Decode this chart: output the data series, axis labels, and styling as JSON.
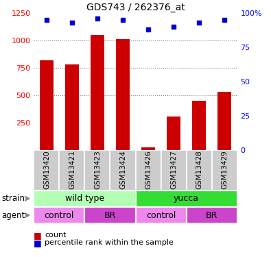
{
  "title": "GDS743 / 262376_at",
  "samples": [
    "GSM13420",
    "GSM13421",
    "GSM13423",
    "GSM13424",
    "GSM13426",
    "GSM13427",
    "GSM13428",
    "GSM13429"
  ],
  "counts": [
    820,
    780,
    1050,
    1010,
    30,
    310,
    450,
    530
  ],
  "percentile_ranks": [
    95,
    93,
    96,
    95,
    88,
    90,
    93,
    95
  ],
  "bar_color": "#cc0000",
  "dot_color": "#0000cc",
  "ylim_left": [
    0,
    1250
  ],
  "ylim_right": [
    0,
    100
  ],
  "yticks_left": [
    250,
    500,
    750,
    1000,
    1250
  ],
  "yticks_right": [
    0,
    25,
    50,
    75,
    100
  ],
  "ytick_labels_right": [
    "0",
    "25",
    "50",
    "75",
    "100%"
  ],
  "strain_groups": [
    {
      "label": "wild type",
      "start": 0,
      "end": 4,
      "color": "#b3ffb3"
    },
    {
      "label": "yucca",
      "start": 4,
      "end": 8,
      "color": "#33dd33"
    }
  ],
  "agent_groups": [
    {
      "label": "control",
      "start": 0,
      "end": 2,
      "color": "#ee88ee"
    },
    {
      "label": "BR",
      "start": 2,
      "end": 4,
      "color": "#cc44cc"
    },
    {
      "label": "control",
      "start": 4,
      "end": 6,
      "color": "#ee88ee"
    },
    {
      "label": "BR",
      "start": 6,
      "end": 8,
      "color": "#cc44cc"
    }
  ],
  "bg_color_xticklabels": "#cccccc",
  "grid_vals": [
    500,
    750,
    1000
  ],
  "bar_width": 0.55
}
